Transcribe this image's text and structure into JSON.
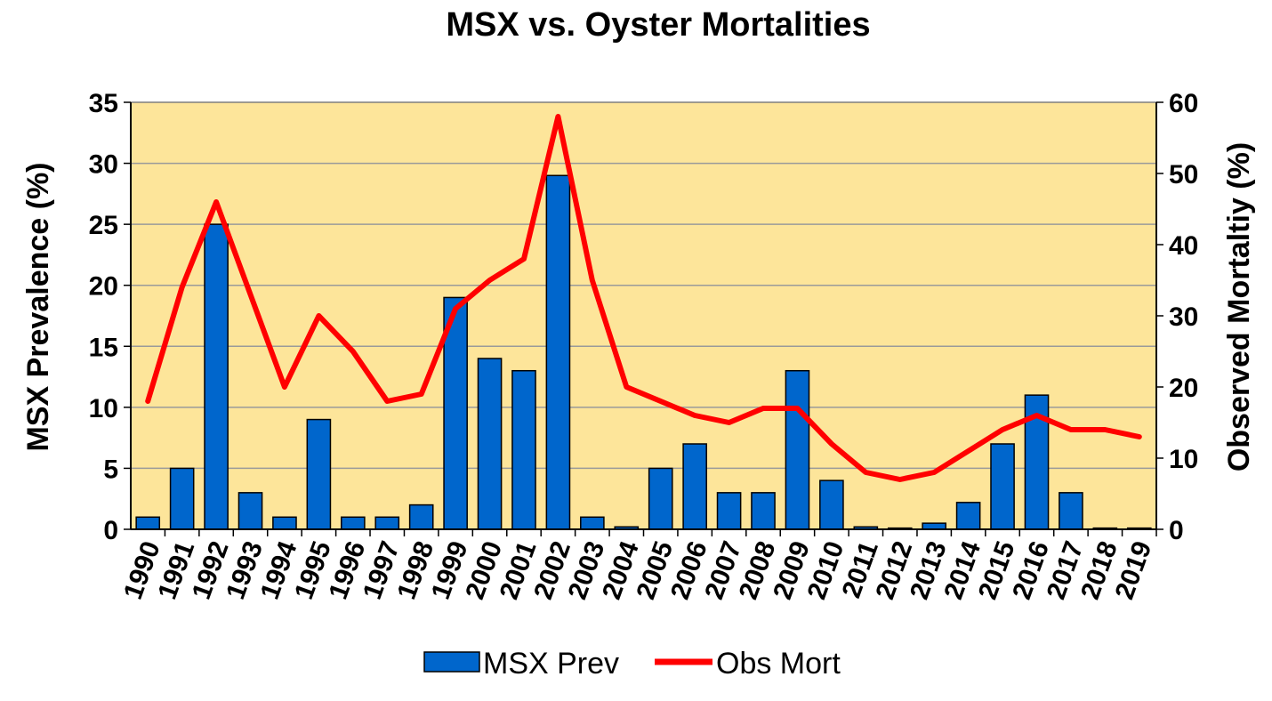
{
  "chart_data": {
    "type": "bar",
    "title": "MSX vs. Oyster Mortalities",
    "ylabel": "MSX Prevalence (%)",
    "y2label": "Observed Mortaltiy (%)",
    "ylim": [
      0,
      35
    ],
    "y2lim": [
      0,
      60
    ],
    "yticks": [
      "0",
      "5",
      "10",
      "15",
      "20",
      "25",
      "30",
      "35"
    ],
    "y2ticks": [
      "0",
      "10",
      "20",
      "30",
      "40",
      "50",
      "60"
    ],
    "grid": true,
    "legend_position": "bottom",
    "plot_background": "#FDE59A",
    "categories": [
      "1990",
      "1991",
      "1992",
      "1993",
      "1994",
      "1995",
      "1996",
      "1997",
      "1998",
      "1999",
      "2000",
      "2001",
      "2002",
      "2003",
      "2004",
      "2005",
      "2006",
      "2007",
      "2008",
      "2009",
      "2010",
      "2011",
      "2012",
      "2013",
      "2014",
      "2015",
      "2016",
      "2017",
      "2018",
      "2019"
    ],
    "series": [
      {
        "name": "MSX Prev",
        "type": "bar",
        "axis": "left",
        "color": "#0066CC",
        "values": [
          1,
          5,
          25,
          3,
          1,
          9,
          1,
          1,
          2,
          19,
          14,
          13,
          29,
          1,
          0.2,
          5,
          7,
          3,
          3,
          13,
          4,
          0.2,
          0.1,
          0.5,
          2.2,
          7,
          11,
          3,
          0.1,
          0.1
        ]
      },
      {
        "name": "Obs Mort",
        "type": "line",
        "axis": "right",
        "color": "#FF0000",
        "values": [
          18,
          34,
          46,
          33,
          20,
          30,
          25,
          18,
          19,
          31,
          35,
          38,
          58,
          35,
          20,
          18,
          16,
          15,
          17,
          17,
          12,
          8,
          7,
          8,
          11,
          14,
          16,
          14,
          14,
          13
        ]
      }
    ]
  }
}
